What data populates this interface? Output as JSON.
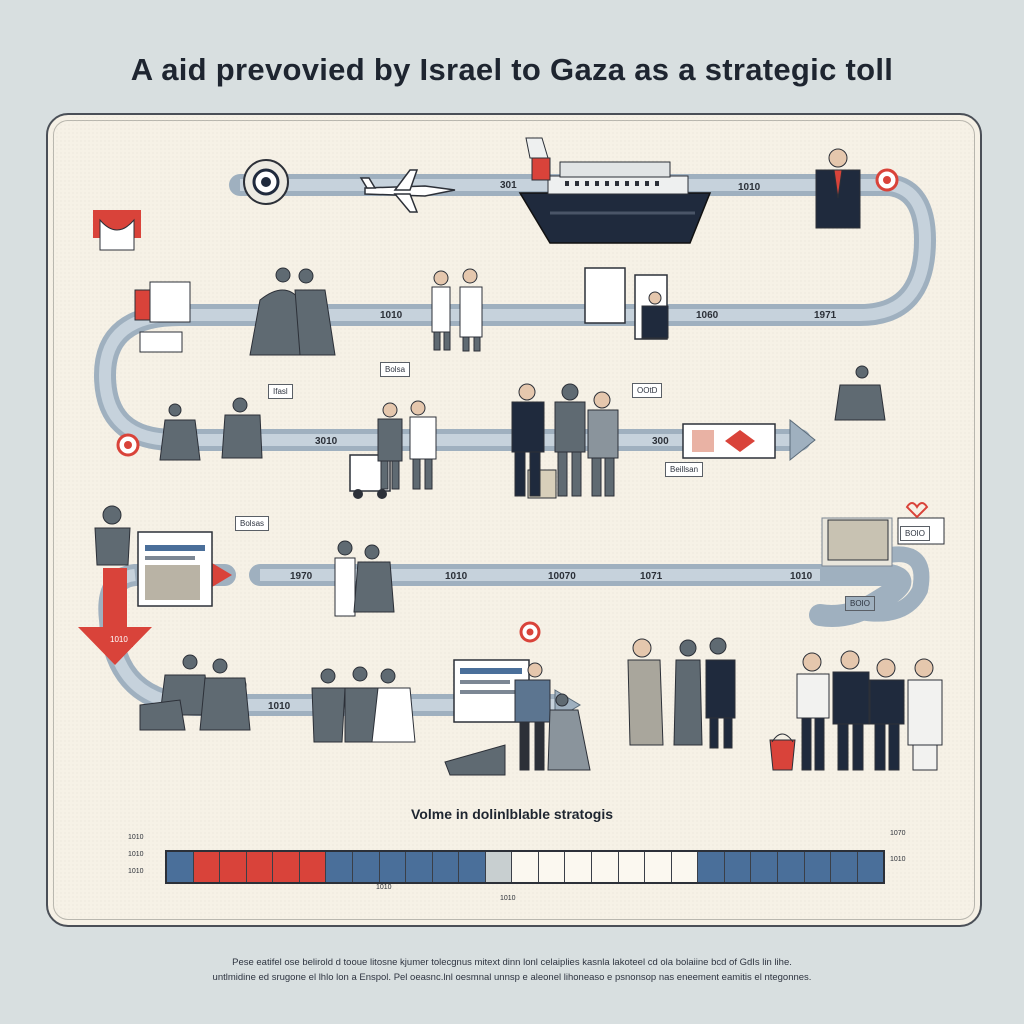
{
  "header": {
    "title": "A aid prevovied by Israel to Gaza as a strategic toll"
  },
  "timeline": {
    "years": {
      "r1a": "301",
      "r1b": "1010",
      "r2a": "1010",
      "r2b": "1060",
      "r2c": "1971",
      "r3a": "3010",
      "r3b": "300",
      "r4a": "1970",
      "r4b": "1010",
      "r4c": "10070",
      "r4d": "1071",
      "r4e": "1010",
      "r5a": "1010"
    },
    "callouts": {
      "c1": "Ifasl",
      "c2": "Bolsa",
      "c3": "OOtD",
      "c4": "BOIO",
      "c5": "Bolsas",
      "c6": "Beillsan",
      "c7": "1010",
      "c8": "BOIO"
    }
  },
  "scale": {
    "title": "Volme in dolinlblable stratogis",
    "left_ticks": [
      "1010",
      "1010",
      "1010"
    ],
    "right_ticks": [
      "1070",
      "1010"
    ],
    "bottom_mid": "1010",
    "bottom_left": "1010",
    "segments": [
      "#4a6f9a",
      "#d9433a",
      "#d9433a",
      "#d9433a",
      "#d9433a",
      "#d9433a",
      "#4a6f9a",
      "#4a6f9a",
      "#4a6f9a",
      "#4a6f9a",
      "#4a6f9a",
      "#4a6f9a",
      "#c8cfd0",
      "#fbf8f0",
      "#fbf8f0",
      "#fbf8f0",
      "#fbf8f0",
      "#fbf8f0",
      "#fbf8f0",
      "#fbf8f0",
      "#4a6f9a",
      "#4a6f9a",
      "#4a6f9a",
      "#4a6f9a",
      "#4a6f9a",
      "#4a6f9a",
      "#4a6f9a"
    ]
  },
  "footer": {
    "line1": "Pese eatifel ose belirold d tooue litosne kjumer tolecgnus mitext dinn lonl celaiplies kasnla lakoteel cd ola bolaiine bcd of GdIs lin lihe.",
    "line2": "untlmidine ed srugone el lhlo lon a Enspol. Pel oeasnc.lnl oesmnal unnsp e aleonel lihoneaso e psnonsop nas eneement eamitis el ntegonnes."
  },
  "colors": {
    "accent_red": "#d9433a",
    "road": "#9fb0bf",
    "navy": "#1f2a3d"
  }
}
